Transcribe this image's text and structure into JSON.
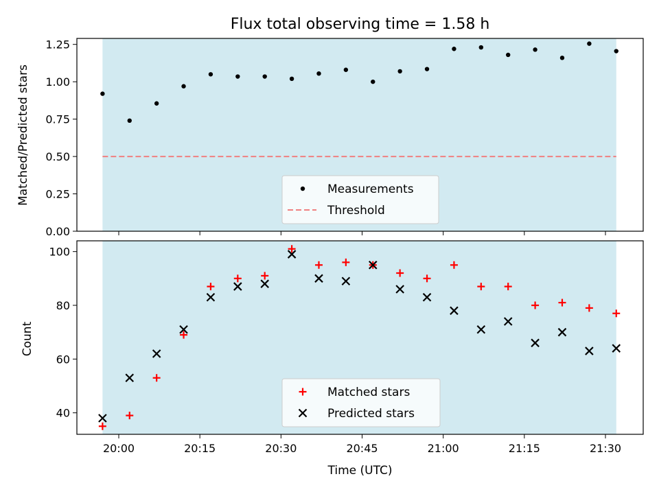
{
  "chart_data": [
    {
      "type": "scatter",
      "title": "Flux total observing time = 1.58 h",
      "xlabel": "",
      "ylabel": "Matched/Predicted stars",
      "ylim": [
        0,
        1.29
      ],
      "yticks": [
        "0.00",
        "0.25",
        "0.50",
        "0.75",
        "1.00",
        "1.25"
      ],
      "shaded_region": {
        "from": "19:57",
        "to": "21:32",
        "color": "#add8e6"
      },
      "threshold": {
        "value": 0.5,
        "label": "Threshold",
        "color": "#f08080"
      },
      "series": [
        {
          "name": "Measurements",
          "color": "#000000",
          "x": [
            "19:57",
            "20:02",
            "20:07",
            "20:12",
            "20:17",
            "20:22",
            "20:27",
            "20:32",
            "20:37",
            "20:42",
            "20:47",
            "20:52",
            "20:57",
            "21:02",
            "21:07",
            "21:12",
            "21:17",
            "21:22",
            "21:27",
            "21:32"
          ],
          "values": [
            0.92,
            0.74,
            0.855,
            0.97,
            1.05,
            1.035,
            1.035,
            1.02,
            1.055,
            1.08,
            1.0,
            1.07,
            1.085,
            1.22,
            1.23,
            1.18,
            1.215,
            1.16,
            1.255,
            1.205
          ]
        }
      ],
      "legend": {
        "placement": "bottom-center",
        "entries": [
          "Measurements",
          "Threshold"
        ]
      }
    },
    {
      "type": "scatter",
      "title": "",
      "xlabel": "Time (UTC)",
      "ylabel": "Count",
      "ylim": [
        32,
        104
      ],
      "yticks": [
        "40",
        "60",
        "80",
        "100"
      ],
      "xticks": [
        "20:00",
        "20:15",
        "20:30",
        "20:45",
        "21:00",
        "21:15",
        "21:30"
      ],
      "shaded_region": {
        "from": "19:57",
        "to": "21:32",
        "color": "#add8e6"
      },
      "series": [
        {
          "name": "Matched stars",
          "marker": "plus",
          "color": "#ff0000",
          "x": [
            "19:57",
            "20:02",
            "20:07",
            "20:12",
            "20:17",
            "20:22",
            "20:27",
            "20:32",
            "20:37",
            "20:42",
            "20:47",
            "20:52",
            "20:57",
            "21:02",
            "21:07",
            "21:12",
            "21:17",
            "21:22",
            "21:27",
            "21:32"
          ],
          "values": [
            35,
            39,
            53,
            69,
            87,
            90,
            91,
            101,
            95,
            96,
            95,
            92,
            90,
            95,
            87,
            87,
            80,
            81,
            79,
            77
          ]
        },
        {
          "name": "Predicted stars",
          "marker": "x",
          "color": "#000000",
          "x": [
            "19:57",
            "20:02",
            "20:07",
            "20:12",
            "20:17",
            "20:22",
            "20:27",
            "20:32",
            "20:37",
            "20:42",
            "20:47",
            "20:52",
            "20:57",
            "21:02",
            "21:07",
            "21:12",
            "21:17",
            "21:22",
            "21:27",
            "21:32"
          ],
          "values": [
            38,
            53,
            62,
            71,
            83,
            87,
            88,
            99,
            90,
            89,
            95,
            86,
            83,
            78,
            71,
            74,
            66,
            70,
            63,
            64
          ]
        }
      ],
      "legend": {
        "placement": "bottom-center",
        "entries": [
          "Matched stars",
          "Predicted stars"
        ]
      }
    }
  ]
}
